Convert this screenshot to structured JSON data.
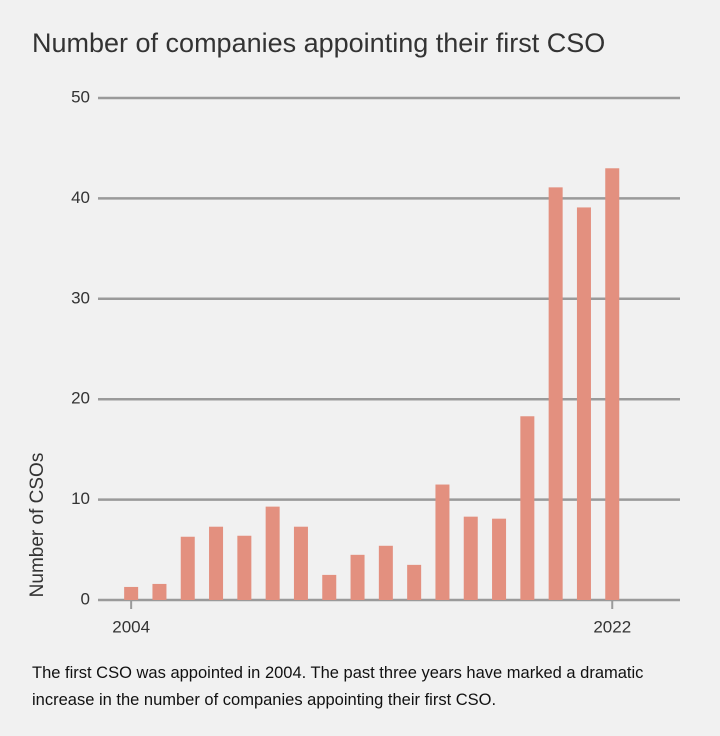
{
  "chart_data": {
    "type": "bar",
    "title": "Number of companies appointing their first CSO",
    "y_label": "Number of CSOs",
    "caption": "The first CSO was appointed in 2004. The past three years have marked a dramatic increase in the number of companies appointing their first CSO.",
    "categories": [
      "2004",
      null,
      null,
      null,
      null,
      null,
      null,
      null,
      null,
      null,
      null,
      null,
      null,
      null,
      null,
      null,
      null,
      "2022"
    ],
    "values": [
      1.3,
      1.6,
      6.3,
      7.3,
      6.4,
      9.3,
      7.3,
      2.5,
      4.5,
      5.4,
      3.5,
      11.5,
      8.3,
      8.1,
      18.3,
      41.1,
      39.1,
      43.0
    ],
    "color": "#e3907f",
    "ylim": [
      0,
      50
    ],
    "yticks": [
      0,
      10,
      20,
      30,
      40,
      50
    ],
    "grid": true
  }
}
